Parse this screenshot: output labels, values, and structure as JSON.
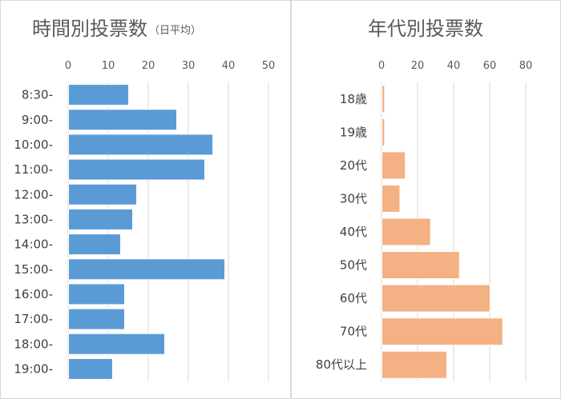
{
  "chart_data": [
    {
      "type": "bar",
      "orientation": "horizontal",
      "title": "時間別投票数",
      "title_suffix": "（日平均）",
      "categories": [
        "8:30-",
        "9:00-",
        "10:00-",
        "11:00-",
        "12:00-",
        "13:00-",
        "14:00-",
        "15:00-",
        "16:00-",
        "17:00-",
        "18:00-",
        "19:00-"
      ],
      "values": [
        15,
        27,
        36,
        34,
        17,
        16,
        13,
        39,
        14,
        14,
        24,
        11
      ],
      "xlim": [
        0,
        50
      ],
      "xticks": [
        "0",
        "10",
        "20",
        "30",
        "40",
        "50"
      ],
      "grid": true,
      "legend": "none",
      "color": "#5b9bd5"
    },
    {
      "type": "bar",
      "orientation": "horizontal",
      "title": "年代別投票数",
      "categories": [
        "18歳",
        "19歳",
        "20代",
        "30代",
        "40代",
        "50代",
        "60代",
        "70代",
        "80代以上"
      ],
      "values": [
        1.5,
        1.5,
        13,
        10,
        27,
        43,
        60,
        67,
        36
      ],
      "xlim": [
        0,
        80
      ],
      "xticks": [
        "0",
        "20",
        "40",
        "60",
        "80"
      ],
      "grid": true,
      "legend": "none",
      "color": "#f4b183"
    }
  ]
}
